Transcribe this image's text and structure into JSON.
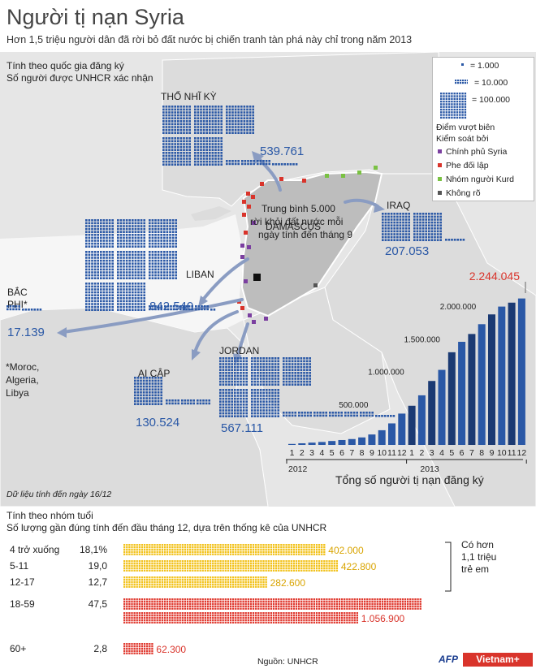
{
  "header": {
    "title": "Người tị nạn Syria",
    "subtitle": "Hơn 1,5 triệu người dân đã rời bỏ đất nước bị chiến tranh tàn phá này chỉ trong năm 2013"
  },
  "map": {
    "section_title_1": "Tính theo quốc gia đăng ký",
    "section_title_2": "Số người được UNHCR xác nhận",
    "countries": [
      {
        "name": "THỔ NHĨ KỲ",
        "value": "539.761"
      },
      {
        "name": "IRAQ",
        "value": "207.053"
      },
      {
        "name": "LIBAN",
        "value": "842.540"
      },
      {
        "name": "BẮC PHI*",
        "value": "17.139"
      },
      {
        "name": "AI CẬP",
        "value": "130.524"
      },
      {
        "name": "JORDAN",
        "value": "567.111"
      }
    ],
    "bac_phi_line1": "BẮC",
    "bac_phi_line2": "PHI*",
    "footnote_1": "*Moroc,",
    "footnote_2": "Algeria,",
    "footnote_3": "Libya",
    "capital": "DAMASCUS",
    "note_1": "Trung bình 5.000",
    "note_2": "rời khỏi đất nước mỗi",
    "note_3": "ngày tính đến tháng 9",
    "data_date": "Dữ liệu tính đến ngày 16/12"
  },
  "legend": {
    "unit_1": "= 1.000",
    "unit_10": "= 10.000",
    "unit_100": "= 100.000",
    "crossing_title_1": "Điểm vượt biên",
    "crossing_title_2": "Kiểm soát bởi",
    "items": [
      {
        "label": "Chính phủ Syria",
        "color": "#7b3fa0"
      },
      {
        "label": "Phe đối lập",
        "color": "#d9342b"
      },
      {
        "label": "Nhóm người Kurd",
        "color": "#7ac143"
      },
      {
        "label": "Không rõ",
        "color": "#555555"
      }
    ]
  },
  "chart_data": [
    {
      "type": "bar",
      "title": "Tổng số người tị nạn đăng ký",
      "categories": [
        "1",
        "2",
        "3",
        "4",
        "5",
        "6",
        "7",
        "8",
        "9",
        "10",
        "11",
        "12",
        "1",
        "2",
        "3",
        "4",
        "5",
        "6",
        "7",
        "8",
        "9",
        "10",
        "11",
        "12"
      ],
      "year_labels": [
        "2012",
        "2013"
      ],
      "values": [
        15000,
        25000,
        35000,
        45000,
        60000,
        75000,
        90000,
        115000,
        160000,
        225000,
        330000,
        480000,
        600000,
        760000,
        980000,
        1150000,
        1420000,
        1580000,
        1700000,
        1850000,
        2000000,
        2120000,
        2180000,
        2244045
      ],
      "tick_labels": [
        "500.000",
        "1.000.000",
        "1.500.000",
        "2.000.000"
      ],
      "ticks": [
        500000,
        1000000,
        1500000,
        2000000
      ],
      "max_label": "2.244.045",
      "ylim": [
        0,
        2300000
      ]
    },
    {
      "type": "bar",
      "title": "Tính theo nhóm tuổi",
      "subtitle": "Số lượng gần đúng tính đến đầu tháng 12, dựa trên thống kê của UNHCR",
      "categories": [
        "4 trở xuống",
        "5-11",
        "12-17",
        "18-59",
        "60+"
      ],
      "percent_labels": [
        "18,1%",
        "19,0",
        "12,7",
        "47,5",
        "2,8"
      ],
      "values": [
        402000,
        422800,
        282600,
        1056900,
        62300
      ],
      "value_labels": [
        "402.000",
        "422.800",
        "282.600",
        "1.056.900",
        "62.300"
      ],
      "bracket_note": [
        "Có hơn",
        "1,1 triệu",
        "trẻ em"
      ]
    }
  ],
  "footer": {
    "source": "Nguồn: UNHCR",
    "brand_afp": "AFP",
    "brand_vn": "Vietnam+"
  },
  "colors": {
    "blue": "#2a58a6",
    "darkblue": "#1b3a73",
    "yellow": "#f2c21b",
    "red": "#e03a30",
    "red_label": "#d9342b"
  }
}
